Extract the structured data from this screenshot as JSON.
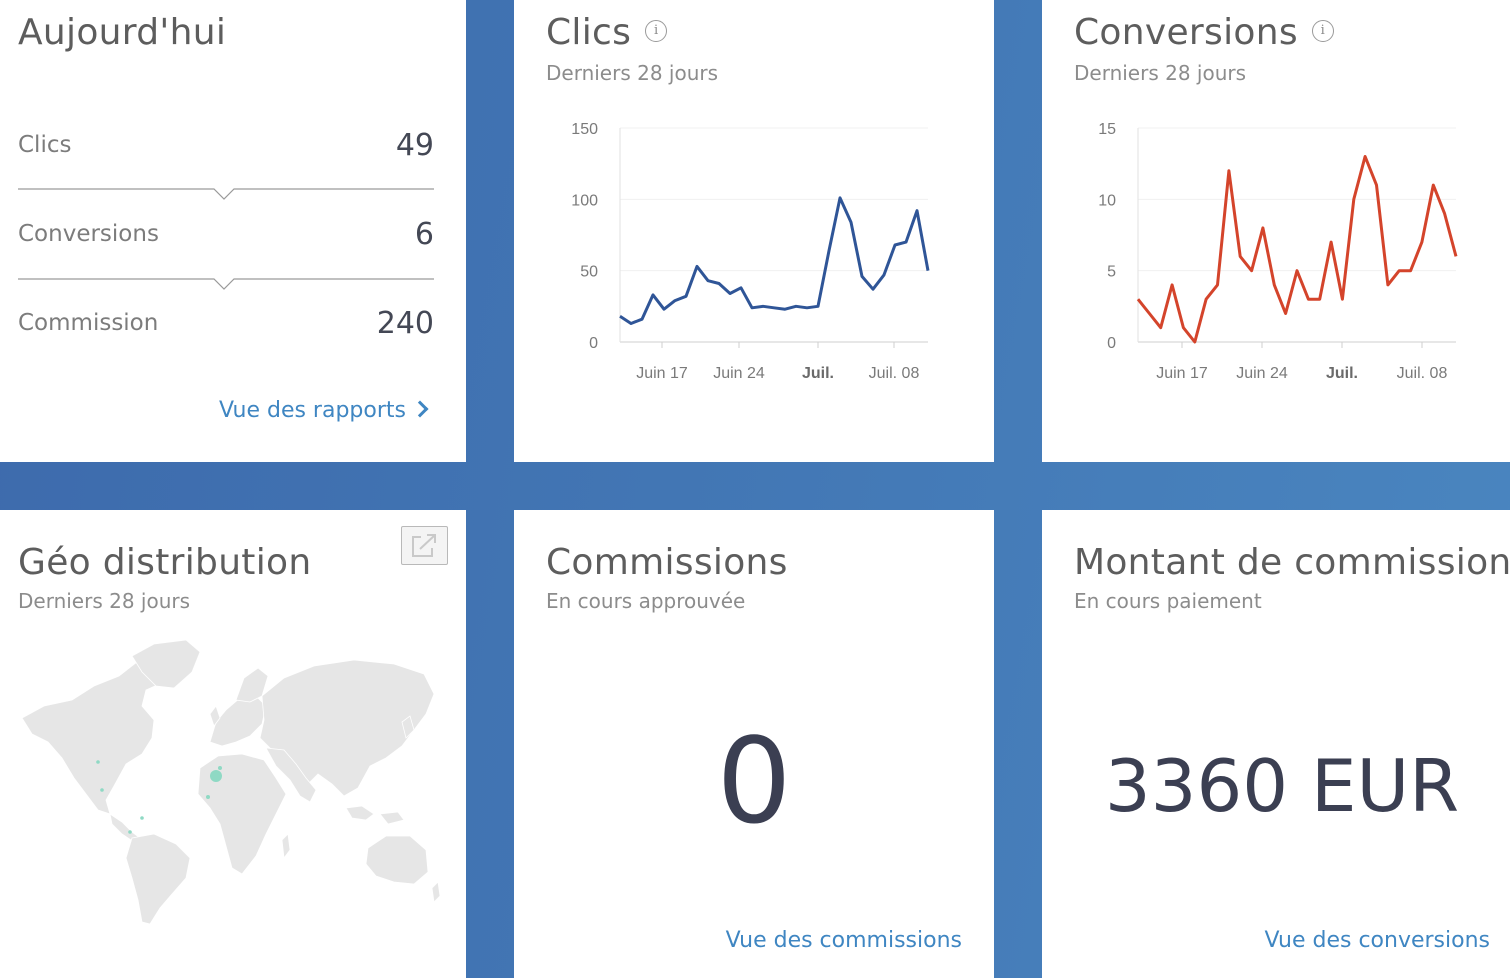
{
  "today": {
    "title": "Aujourd'hui",
    "stats": [
      {
        "label": "Clics",
        "value": "49"
      },
      {
        "label": "Conversions",
        "value": "6"
      },
      {
        "label": "Commission",
        "value": "240"
      }
    ],
    "link_label": "Vue des rapports"
  },
  "clicks": {
    "title": "Clics",
    "subtitle": "Derniers 28 jours",
    "info_icon": "info-icon"
  },
  "conversions": {
    "title": "Conversions",
    "subtitle": "Derniers 28 jours",
    "info_icon": "info-icon"
  },
  "geo": {
    "title": "Géo distribution",
    "subtitle": "Derniers 28 jours",
    "expand_icon": "external-link-icon"
  },
  "commissions": {
    "title": "Commissions",
    "subtitle": "En cours approuvée",
    "value": "0",
    "link_label": "Vue des commissions"
  },
  "amount": {
    "title": "Montant de commission",
    "subtitle": "En cours paiement",
    "value": "3360 EUR",
    "link_label": "Vue des conversions"
  },
  "colors": {
    "background": "#4276b4",
    "clicks_line": "#2f5597",
    "conversions_line": "#d4442b",
    "link": "#3f86c2",
    "map_land": "#e6e6e6",
    "map_marker": "#8fd9c4"
  },
  "chart_data": [
    {
      "id": "clicks",
      "type": "line",
      "ylim": [
        0,
        150
      ],
      "yticks": [
        0,
        50,
        100,
        150
      ],
      "xticks": [
        {
          "label": "Juin 17",
          "bold": false
        },
        {
          "label": "Juin 24",
          "bold": false
        },
        {
          "label": "Juil.",
          "bold": true
        },
        {
          "label": "Juil. 08",
          "bold": false
        }
      ],
      "grid": true,
      "series": [
        {
          "color": "#2f5597",
          "values": [
            18,
            13,
            16,
            33,
            23,
            29,
            32,
            53,
            43,
            41,
            34,
            38,
            24,
            25,
            24,
            23,
            25,
            24,
            25,
            64,
            101,
            84,
            46,
            37,
            47,
            68,
            70,
            92,
            50
          ]
        }
      ]
    },
    {
      "id": "conversions",
      "type": "line",
      "ylim": [
        0,
        15
      ],
      "yticks": [
        0,
        5,
        10,
        15
      ],
      "xticks": [
        {
          "label": "Juin 17",
          "bold": false
        },
        {
          "label": "Juin 24",
          "bold": false
        },
        {
          "label": "Juil.",
          "bold": true
        },
        {
          "label": "Juil. 08",
          "bold": false
        }
      ],
      "grid": true,
      "series": [
        {
          "color": "#d4442b",
          "values": [
            3,
            2,
            1,
            4,
            1,
            0,
            3,
            4,
            12,
            6,
            5,
            8,
            4,
            2,
            5,
            3,
            3,
            7,
            3,
            10,
            13,
            11,
            4,
            5,
            5,
            7,
            11,
            9,
            6
          ]
        }
      ]
    }
  ]
}
